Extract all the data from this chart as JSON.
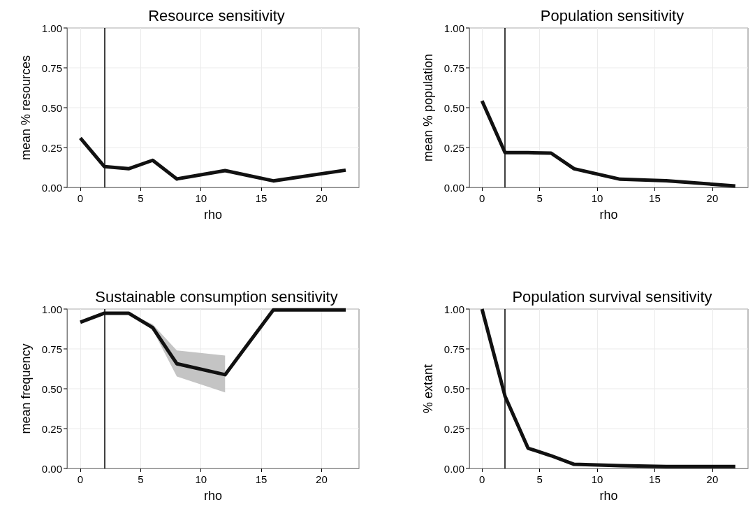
{
  "chart_data": [
    {
      "type": "line",
      "title": "Resource sensitivity",
      "xlabel": "rho",
      "ylabel": "mean % resources",
      "x": [
        0,
        2,
        4,
        6,
        8,
        12,
        16,
        22
      ],
      "xlim": [
        -1.1,
        23.1
      ],
      "xticks": [
        0,
        5,
        10,
        15,
        20
      ],
      "ylim": [
        0,
        1
      ],
      "yticks": [
        {
          "value": 0,
          "label": "0.00"
        },
        {
          "value": 0.25,
          "label": "0.25"
        },
        {
          "value": 0.5,
          "label": "0.50"
        },
        {
          "value": 0.75,
          "label": "0.75"
        },
        {
          "value": 1,
          "label": "1.00"
        }
      ],
      "grid": true,
      "marker": "none",
      "line_style": "solid",
      "ref_lines": [
        {
          "axis": "x",
          "value": 2
        }
      ],
      "series": [
        {
          "color": "#111111",
          "values": [
            0.31,
            0.13,
            0.117,
            0.17,
            0.053,
            0.105,
            0.041,
            0.108
          ]
        }
      ]
    },
    {
      "type": "line",
      "title": "Population sensitivity",
      "xlabel": "rho",
      "ylabel": "mean % population",
      "x": [
        0,
        2,
        4,
        6,
        8,
        12,
        16,
        22
      ],
      "xlim": [
        -1.1,
        23.1
      ],
      "xticks": [
        0,
        5,
        10,
        15,
        20
      ],
      "ylim": [
        0,
        1
      ],
      "yticks": [
        {
          "value": 0,
          "label": "0.00"
        },
        {
          "value": 0.25,
          "label": "0.25"
        },
        {
          "value": 0.5,
          "label": "0.50"
        },
        {
          "value": 0.75,
          "label": "0.75"
        },
        {
          "value": 1,
          "label": "1.00"
        }
      ],
      "grid": true,
      "marker": "none",
      "line_style": "solid",
      "ref_lines": [
        {
          "axis": "x",
          "value": 2
        }
      ],
      "series": [
        {
          "color": "#111111",
          "values": [
            0.543,
            0.218,
            0.218,
            0.215,
            0.117,
            0.051,
            0.042,
            0.009
          ]
        }
      ]
    },
    {
      "type": "line",
      "title": "Sustainable consumption sensitivity",
      "xlabel": "rho",
      "ylabel": "mean frequency",
      "x": [
        0,
        2,
        4,
        6,
        8,
        12,
        16,
        22
      ],
      "xlim": [
        -1.1,
        23.1
      ],
      "xticks": [
        0,
        5,
        10,
        15,
        20
      ],
      "ylim": [
        0,
        1
      ],
      "yticks": [
        {
          "value": 0,
          "label": "0.00"
        },
        {
          "value": 0.25,
          "label": "0.25"
        },
        {
          "value": 0.5,
          "label": "0.50"
        },
        {
          "value": 0.75,
          "label": "0.75"
        },
        {
          "value": 1,
          "label": "1.00"
        }
      ],
      "grid": true,
      "marker": "none",
      "line_style": "solid",
      "ref_lines": [
        {
          "axis": "x",
          "value": 2
        }
      ],
      "series": [
        {
          "color": "#111111",
          "values": [
            0.917,
            0.974,
            0.974,
            0.883,
            0.657,
            0.588,
            0.995,
            0.995
          ],
          "lower": [
            null,
            null,
            0.974,
            0.869,
            0.577,
            0.477,
            null,
            null
          ],
          "upper": [
            null,
            null,
            0.974,
            0.905,
            0.74,
            0.708,
            null,
            null
          ]
        }
      ]
    },
    {
      "type": "line",
      "title": "Population survival sensitivity",
      "xlabel": "rho",
      "ylabel": "% extant",
      "x": [
        0,
        2,
        4,
        6,
        8,
        12,
        16,
        22
      ],
      "xlim": [
        -1.1,
        23.1
      ],
      "xticks": [
        0,
        5,
        10,
        15,
        20
      ],
      "ylim": [
        0,
        1
      ],
      "yticks": [
        {
          "value": 0,
          "label": "0.00"
        },
        {
          "value": 0.25,
          "label": "0.25"
        },
        {
          "value": 0.5,
          "label": "0.50"
        },
        {
          "value": 0.75,
          "label": "0.75"
        },
        {
          "value": 1,
          "label": "1.00"
        }
      ],
      "grid": true,
      "marker": "none",
      "line_style": "solid",
      "ref_lines": [
        {
          "axis": "x",
          "value": 2
        }
      ],
      "series": [
        {
          "color": "#111111",
          "values": [
            1.0,
            0.453,
            0.127,
            0.08,
            0.026,
            0.018,
            0.012,
            0.012
          ]
        }
      ]
    }
  ]
}
